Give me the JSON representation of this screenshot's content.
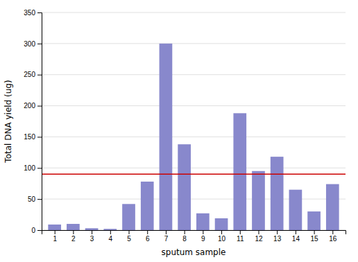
{
  "chart_data": {
    "type": "bar",
    "x": [
      1,
      2,
      3,
      4,
      5,
      6,
      7,
      8,
      9,
      10,
      11,
      12,
      13,
      14,
      15,
      16
    ],
    "values": [
      9,
      10,
      3,
      2,
      42,
      78,
      300,
      138,
      27,
      19,
      188,
      95,
      118,
      65,
      30,
      74
    ],
    "color": "#8888cc",
    "xlabel": "sputum sample",
    "ylabel": "Total DNA yield (ug)",
    "xlim": [
      0.3,
      16.7
    ],
    "xticks": [
      1,
      2,
      3,
      4,
      5,
      6,
      7,
      8,
      9,
      10,
      11,
      12,
      13,
      14,
      15,
      16
    ],
    "ylim": [
      0,
      350
    ],
    "yticks": [
      0,
      50,
      100,
      150,
      200,
      250,
      300,
      350
    ],
    "grid": true,
    "reference_line": {
      "y": 90,
      "color": "#cc0000"
    }
  }
}
